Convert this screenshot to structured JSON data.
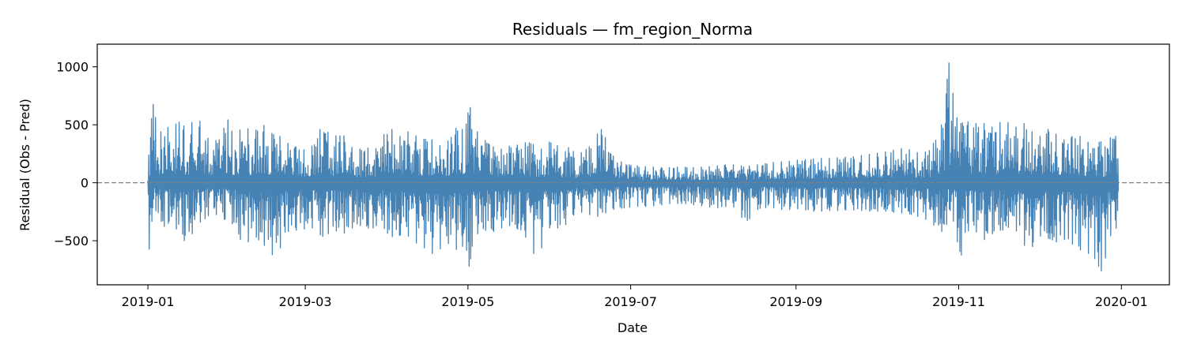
{
  "chart_data": {
    "type": "line",
    "title": "Residuals — fm_region_Norma",
    "xlabel": "Date",
    "ylabel": "Residual (Obs - Pred)",
    "xlim": [
      "2018-12-13",
      "2020-01-19"
    ],
    "ylim": [
      -880,
      1195
    ],
    "x_ticks": [
      "2019-01",
      "2019-03",
      "2019-05",
      "2019-07",
      "2019-09",
      "2019-11",
      "2020-01"
    ],
    "y_ticks": [
      -500,
      0,
      500,
      1000
    ],
    "y_tick_labels": [
      "−500",
      "0",
      "500",
      "1000"
    ],
    "reference_line": {
      "y": 0,
      "style": "dashed",
      "color": "#808080"
    },
    "grid": false,
    "series": [
      {
        "color": "#4682b4",
        "x": [
          "2019-01-01",
          "2019-01-02",
          "2019-01-03",
          "2019-01-05",
          "2019-01-07",
          "2019-01-10",
          "2019-01-13",
          "2019-01-16",
          "2019-01-19",
          "2019-01-22",
          "2019-01-25",
          "2019-01-28",
          "2019-01-31",
          "2019-02-03",
          "2019-02-06",
          "2019-02-09",
          "2019-02-12",
          "2019-02-15",
          "2019-02-18",
          "2019-02-21",
          "2019-02-24",
          "2019-02-27",
          "2019-03-02",
          "2019-03-05",
          "2019-03-08",
          "2019-03-11",
          "2019-03-14",
          "2019-03-17",
          "2019-03-20",
          "2019-03-23",
          "2019-03-26",
          "2019-03-29",
          "2019-04-01",
          "2019-04-04",
          "2019-04-07",
          "2019-04-10",
          "2019-04-13",
          "2019-04-16",
          "2019-04-19",
          "2019-04-22",
          "2019-04-25",
          "2019-04-28",
          "2019-04-30",
          "2019-05-01",
          "2019-05-03",
          "2019-05-06",
          "2019-05-09",
          "2019-05-12",
          "2019-05-15",
          "2019-05-18",
          "2019-05-21",
          "2019-05-24",
          "2019-05-27",
          "2019-05-30",
          "2019-06-02",
          "2019-06-05",
          "2019-06-08",
          "2019-06-11",
          "2019-06-14",
          "2019-06-17",
          "2019-06-20",
          "2019-06-23",
          "2019-06-26",
          "2019-06-29",
          "2019-07-02",
          "2019-07-05",
          "2019-07-08",
          "2019-07-11",
          "2019-07-14",
          "2019-07-17",
          "2019-07-20",
          "2019-07-23",
          "2019-07-26",
          "2019-07-29",
          "2019-08-01",
          "2019-08-04",
          "2019-08-07",
          "2019-08-10",
          "2019-08-13",
          "2019-08-16",
          "2019-08-19",
          "2019-08-22",
          "2019-08-25",
          "2019-08-28",
          "2019-08-31",
          "2019-09-03",
          "2019-09-06",
          "2019-09-09",
          "2019-09-12",
          "2019-09-15",
          "2019-09-18",
          "2019-09-21",
          "2019-09-24",
          "2019-09-27",
          "2019-09-30",
          "2019-10-03",
          "2019-10-06",
          "2019-10-09",
          "2019-10-12",
          "2019-10-15",
          "2019-10-18",
          "2019-10-21",
          "2019-10-24",
          "2019-10-27",
          "2019-10-28",
          "2019-10-29",
          "2019-10-31",
          "2019-11-01",
          "2019-11-03",
          "2019-11-06",
          "2019-11-09",
          "2019-11-12",
          "2019-11-15",
          "2019-11-18",
          "2019-11-21",
          "2019-11-24",
          "2019-11-27",
          "2019-11-30",
          "2019-12-03",
          "2019-12-06",
          "2019-12-09",
          "2019-12-12",
          "2019-12-15",
          "2019-12-18",
          "2019-12-21",
          "2019-12-23",
          "2019-12-24",
          "2019-12-25",
          "2019-12-27",
          "2019-12-29",
          "2019-12-31"
        ],
        "hi": [
          120,
          480,
          700,
          380,
          520,
          430,
          580,
          400,
          640,
          420,
          350,
          380,
          560,
          330,
          580,
          350,
          560,
          430,
          420,
          380,
          300,
          320,
          250,
          380,
          540,
          330,
          480,
          330,
          280,
          300,
          300,
          290,
          540,
          380,
          420,
          460,
          350,
          400,
          340,
          300,
          420,
          520,
          380,
          760,
          500,
          380,
          350,
          270,
          310,
          320,
          330,
          360,
          300,
          280,
          420,
          220,
          320,
          220,
          300,
          320,
          520,
          260,
          200,
          160,
          150,
          140,
          140,
          130,
          130,
          130,
          140,
          130,
          130,
          140,
          140,
          150,
          160,
          150,
          140,
          150,
          160,
          170,
          180,
          180,
          190,
          200,
          200,
          210,
          210,
          210,
          220,
          220,
          230,
          240,
          250,
          260,
          270,
          290,
          300,
          270,
          250,
          280,
          400,
          600,
          1100,
          900,
          600,
          480,
          550,
          500,
          520,
          500,
          460,
          580,
          460,
          500,
          520,
          360,
          440,
          480,
          360,
          380,
          420,
          380,
          320,
          260,
          400,
          260,
          380,
          400,
          400
        ],
        "lo": [
          -660,
          -400,
          -200,
          -300,
          -380,
          -320,
          -480,
          -520,
          -360,
          -320,
          -250,
          -300,
          -330,
          -380,
          -600,
          -420,
          -520,
          -560,
          -680,
          -440,
          -400,
          -420,
          -380,
          -400,
          -500,
          -380,
          -450,
          -420,
          -360,
          -380,
          -400,
          -340,
          -450,
          -480,
          -420,
          -500,
          -540,
          -580,
          -640,
          -500,
          -550,
          -600,
          -480,
          -790,
          -480,
          -400,
          -420,
          -420,
          -360,
          -380,
          -420,
          -520,
          -700,
          -420,
          -360,
          -420,
          -300,
          -260,
          -250,
          -300,
          -280,
          -240,
          -220,
          -220,
          -200,
          -210,
          -200,
          -200,
          -180,
          -180,
          -180,
          -180,
          -200,
          -200,
          -220,
          -210,
          -200,
          -220,
          -380,
          -240,
          -220,
          -210,
          -220,
          -240,
          -220,
          -230,
          -240,
          -250,
          -240,
          -240,
          -240,
          -230,
          -240,
          -240,
          -250,
          -240,
          -250,
          -260,
          -260,
          -280,
          -300,
          -330,
          -400,
          -440,
          -200,
          -280,
          -400,
          -730,
          -480,
          -350,
          -500,
          -480,
          -400,
          -420,
          -350,
          -480,
          -600,
          -500,
          -420,
          -540,
          -480,
          -500,
          -560,
          -600,
          -620,
          -700,
          -760,
          -760,
          -500,
          -400,
          -380
        ]
      }
    ]
  }
}
